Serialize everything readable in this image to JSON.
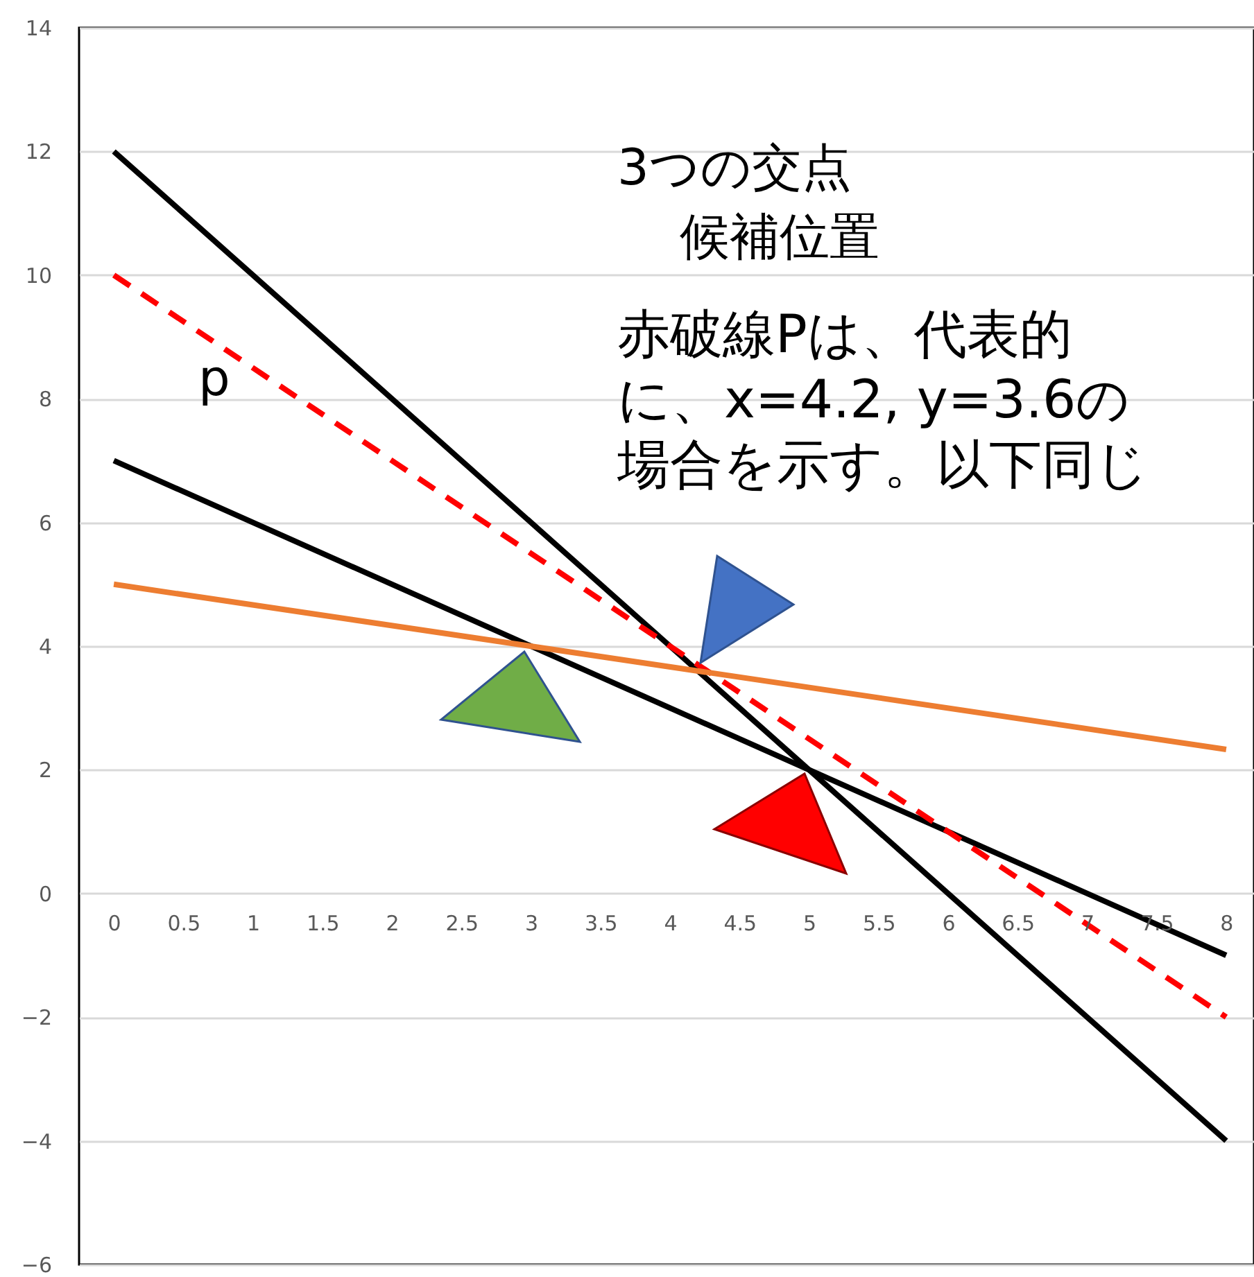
{
  "chart_data": {
    "type": "line",
    "xlim": [
      -0.25,
      8.2
    ],
    "ylim": [
      -6,
      14
    ],
    "xticks": [
      0,
      0.5,
      1,
      1.5,
      2,
      2.5,
      3,
      3.5,
      4,
      4.5,
      5,
      5.5,
      6,
      6.5,
      7,
      7.5,
      8
    ],
    "yticks": [
      -6,
      -4,
      -2,
      0,
      2,
      4,
      6,
      8,
      10,
      12,
      14
    ],
    "grid": "y",
    "x": [
      0,
      8
    ],
    "series": [
      {
        "color": "#000000",
        "values": [
          12,
          -4
        ],
        "line_style": "solid"
      },
      {
        "color": "#000000",
        "values": [
          7,
          -1
        ],
        "line_style": "solid"
      },
      {
        "color": "#ff0000",
        "values": [
          10,
          -2
        ],
        "line_style": "dashed"
      },
      {
        "color": "#ed7d31",
        "values": [
          5,
          2.33
        ],
        "line_style": "solid"
      }
    ],
    "annotations": [
      "p",
      "3つの交点",
      "候補位置",
      "赤破線Pは、代表的に、x=4.2, y=3.6の場合を示す。以下同じ"
    ]
  }
}
